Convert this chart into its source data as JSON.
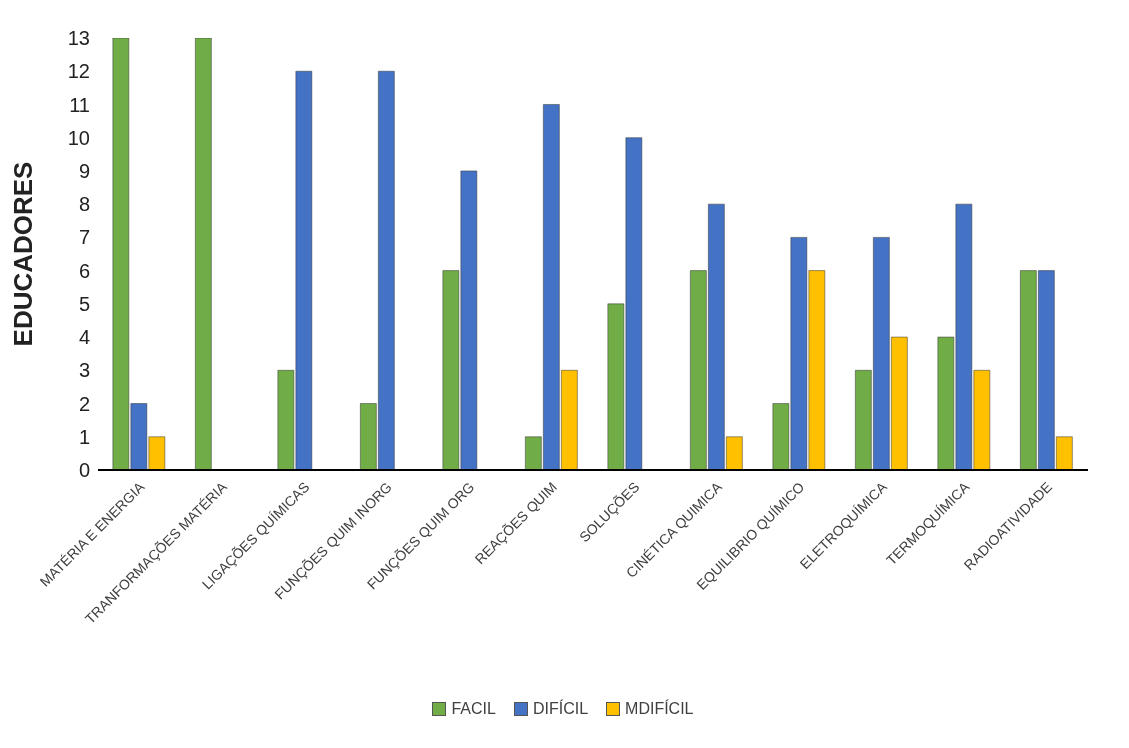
{
  "chart_data": {
    "type": "bar",
    "ylabel": "EDUCADORES",
    "categories": [
      "MATÉRIA E ENERGIA",
      "TRANFORMAÇÕES MATÉRIA",
      "LIGAÇÕES QUÍMICAS",
      "FUNÇÕES QUIM INORG",
      "FUNÇÕES QUIM ORG",
      "REAÇÕES QUIM",
      "SOLUÇÕES",
      "CINÉTICA QUIMICA",
      "EQUILIBRIO QUÍMICO",
      "ELETROQUÍMICA",
      "TERMOQUÍMICA",
      "RADIOATIVIDADE"
    ],
    "series": [
      {
        "name": "FACIL",
        "color": "#70ad47",
        "values": [
          13,
          13,
          3,
          2,
          6,
          1,
          5,
          6,
          2,
          3,
          4,
          6
        ]
      },
      {
        "name": "DIFÍCIL",
        "color": "#4472c4",
        "values": [
          2,
          0,
          12,
          12,
          9,
          11,
          10,
          8,
          7,
          7,
          8,
          6
        ]
      },
      {
        "name": "MDIFÍCIL",
        "color": "#ffc000",
        "values": [
          1,
          0,
          0,
          0,
          0,
          3,
          0,
          1,
          6,
          4,
          3,
          1
        ]
      }
    ],
    "ylim": [
      0,
      13
    ],
    "yticks": [
      0,
      1,
      2,
      3,
      4,
      5,
      6,
      7,
      8,
      9,
      10,
      11,
      12,
      13
    ],
    "legend": "bottom"
  }
}
